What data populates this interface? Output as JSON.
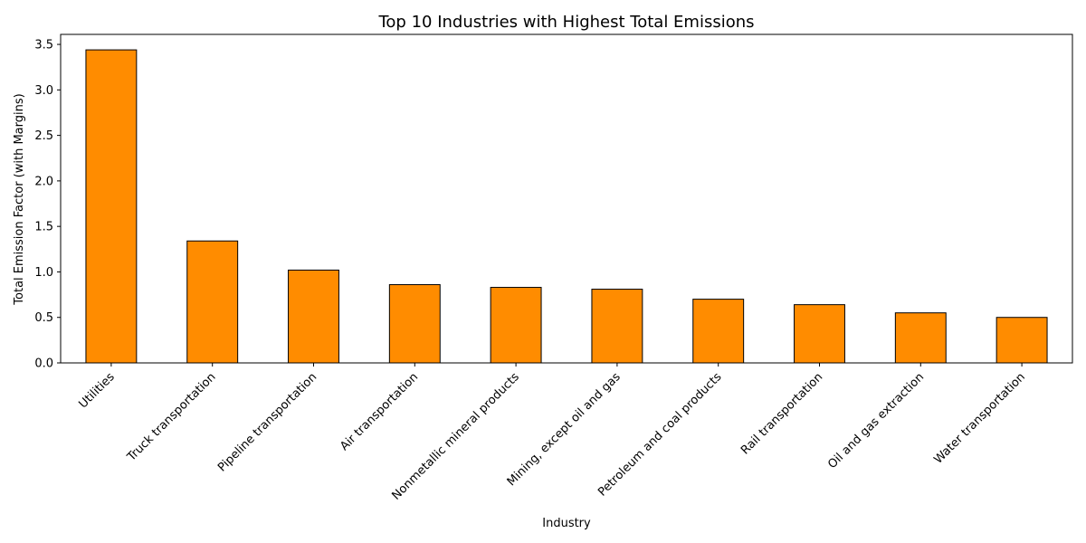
{
  "chart_data": {
    "type": "bar",
    "title": "Top 10 Industries with Highest Total Emissions",
    "xlabel": "Industry",
    "ylabel": "Total Emission Factor (with Margins)",
    "categories": [
      "Utilities",
      "Truck transportation",
      "Pipeline transportation",
      "Air transportation",
      "Nonmetallic mineral products",
      "Mining, except oil and gas",
      "Petroleum and coal products",
      "Rail transportation",
      "Oil and gas extraction",
      "Water transportation"
    ],
    "values": [
      3.44,
      1.34,
      1.02,
      0.86,
      0.83,
      0.81,
      0.7,
      0.64,
      0.55,
      0.5
    ],
    "yticks": [
      0.0,
      0.5,
      1.0,
      1.5,
      2.0,
      2.5,
      3.0,
      3.5
    ],
    "ytick_labels": [
      "0.0",
      "0.5",
      "1.0",
      "1.5",
      "2.0",
      "2.5",
      "3.0",
      "3.5"
    ],
    "ylim": [
      0,
      3.61
    ],
    "grid": false,
    "bar_color": "#ff8c00",
    "bar_edge_color": "#000000"
  }
}
